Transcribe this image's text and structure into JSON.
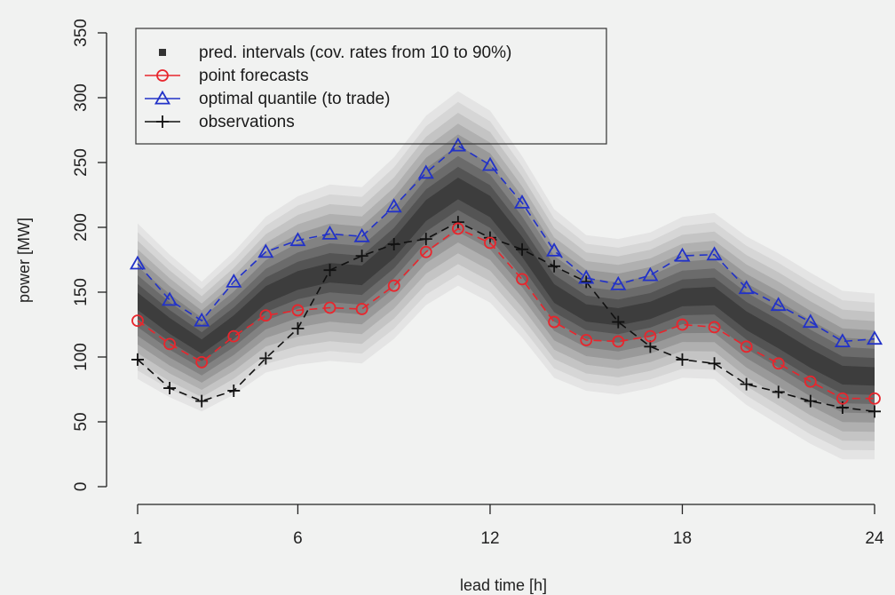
{
  "chart_data": {
    "type": "line",
    "title": "",
    "xlabel": "lead time [h]",
    "ylabel": "power [MW]",
    "xlim": [
      1,
      24
    ],
    "ylim": [
      0,
      350
    ],
    "x_ticks": [
      1,
      6,
      12,
      18,
      24
    ],
    "y_ticks": [
      0,
      50,
      100,
      150,
      200,
      250,
      300,
      350
    ],
    "grid": false,
    "legend_position": "top-left",
    "x": [
      1,
      2,
      3,
      4,
      5,
      6,
      7,
      8,
      9,
      10,
      11,
      12,
      13,
      14,
      15,
      16,
      17,
      18,
      19,
      20,
      21,
      22,
      23,
      24
    ],
    "series": [
      {
        "name": "point forecasts",
        "color": "#e8262d",
        "marker": "circle",
        "line": "dashed",
        "values": [
          128,
          110,
          96,
          116,
          132,
          136,
          138,
          137,
          155,
          181,
          199,
          188,
          160,
          127,
          113,
          112,
          116,
          125,
          123,
          108,
          95,
          81,
          68,
          68
        ]
      },
      {
        "name": "optimal quantile (to trade)",
        "color": "#2232c8",
        "marker": "triangle",
        "line": "dashed",
        "values": [
          172,
          144,
          128,
          158,
          181,
          190,
          195,
          193,
          216,
          242,
          263,
          248,
          219,
          182,
          161,
          156,
          163,
          178,
          179,
          153,
          140,
          127,
          112,
          114
        ]
      },
      {
        "name": "observations",
        "color": "#111111",
        "marker": "plus",
        "line": "dashed",
        "values": [
          98,
          76,
          66,
          74,
          99,
          122,
          167,
          178,
          187,
          191,
          204,
          192,
          183,
          170,
          158,
          127,
          108,
          98,
          95,
          79,
          73,
          66,
          61,
          58
        ]
      }
    ],
    "intervals": {
      "name": "pred. intervals (cov. rates from 10 to 90%)",
      "coverage_rates": [
        10,
        20,
        30,
        40,
        50,
        60,
        70,
        80,
        90
      ],
      "center": [
        143,
        124,
        108,
        126,
        148,
        159,
        165,
        163,
        184,
        213,
        230,
        216,
        185,
        149,
        134,
        131,
        136,
        146,
        147,
        128,
        114,
        99,
        86,
        85
      ],
      "half_width_90": [
        60,
        55,
        50,
        55,
        60,
        65,
        68,
        68,
        70,
        73,
        75,
        74,
        70,
        65,
        60,
        60,
        60,
        62,
        64,
        65,
        66,
        66,
        65,
        64
      ],
      "colors": [
        "#3d3d3d",
        "#545454",
        "#6b6b6b",
        "#828282",
        "#999999",
        "#b0b0b0",
        "#c4c4c4",
        "#d6d6d6",
        "#e4e4e4"
      ]
    },
    "legend": [
      {
        "label": "pred. intervals (cov. rates from 10 to 90%)",
        "marker": "square",
        "color": "#333333"
      },
      {
        "label": "point forecasts",
        "marker": "circle",
        "color": "#e8262d"
      },
      {
        "label": "optimal quantile (to trade)",
        "marker": "triangle",
        "color": "#2232c8"
      },
      {
        "label": "observations",
        "marker": "plus",
        "color": "#111111"
      }
    ]
  }
}
